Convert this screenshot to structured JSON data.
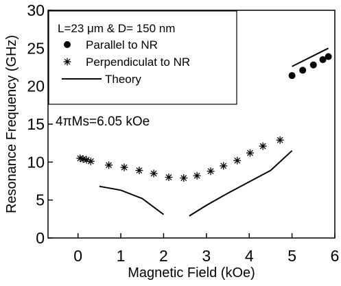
{
  "chart_data": {
    "type": "scatter",
    "xlabel": "Magnetic Field (kOe)",
    "ylabel": "Resonance Frequency (GHz)",
    "xlim": [
      -0.7,
      6
    ],
    "ylim": [
      0,
      30
    ],
    "xticks": [
      0,
      1,
      2,
      3,
      4,
      5,
      6
    ],
    "yticks": [
      0,
      5,
      10,
      15,
      20,
      25,
      30
    ],
    "grid": false,
    "legend_position": "top-left",
    "annotations": [
      {
        "text": "L=23 μm & D= 150 nm"
      },
      {
        "text": "4πMs=6.05 kOe"
      }
    ],
    "series": [
      {
        "name": "Parallel to NR",
        "marker": "filled-circle",
        "x": [
          5.0,
          5.25,
          5.5,
          5.72,
          5.85
        ],
        "y": [
          21.4,
          22.1,
          22.8,
          23.5,
          23.9
        ]
      },
      {
        "name": "Perpendiculat to NR",
        "marker": "asterisk",
        "x": [
          0.05,
          0.12,
          0.2,
          0.3,
          0.72,
          1.08,
          1.43,
          1.77,
          2.12,
          2.47,
          2.78,
          3.1,
          3.4,
          3.72,
          4.02,
          4.32,
          4.72
        ],
        "y": [
          10.5,
          10.4,
          10.3,
          10.1,
          9.6,
          9.3,
          8.9,
          8.5,
          8.0,
          7.9,
          8.2,
          8.8,
          9.5,
          10.2,
          11.2,
          12.1,
          12.9
        ]
      },
      {
        "name": "Theory",
        "marker": "line",
        "segments": [
          {
            "x": [
              0.5,
              1.0,
              1.5,
              2.0
            ],
            "y": [
              6.8,
              6.3,
              5.2,
              3.1
            ]
          },
          {
            "x": [
              2.6,
              3.0,
              3.5,
              4.0,
              4.5,
              5.0
            ],
            "y": [
              2.9,
              4.3,
              5.9,
              7.4,
              8.9,
              11.5
            ]
          },
          {
            "x": [
              5.0,
              5.85
            ],
            "y": [
              22.6,
              25.0
            ]
          }
        ]
      }
    ]
  }
}
